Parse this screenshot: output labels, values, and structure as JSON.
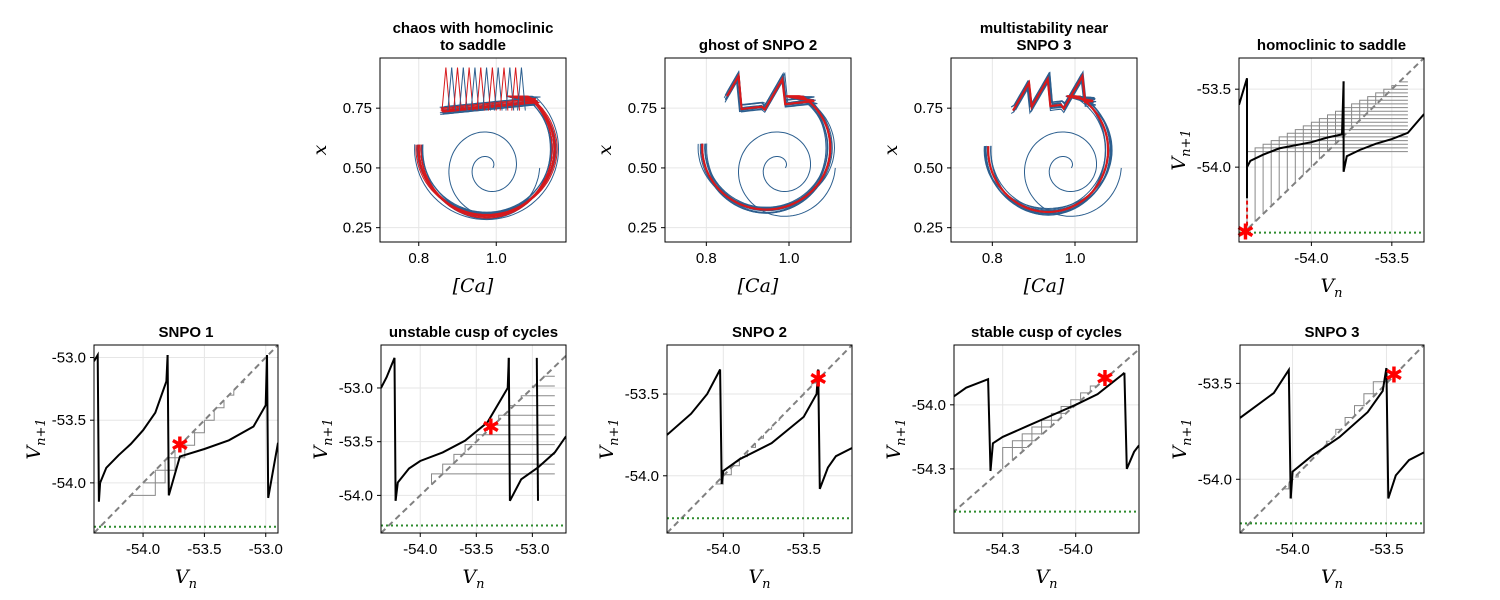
{
  "figure": {
    "title": ""
  },
  "chart_data": [
    {
      "type": "phase-portrait",
      "title": [
        "chaos with homoclinic",
        "to saddle"
      ],
      "xlabel": "[Ca]",
      "ylabel": "x",
      "xlim": [
        0.7,
        1.18
      ],
      "ylim": [
        0.19,
        0.96
      ],
      "xticks": [
        0.8,
        1.0
      ],
      "xtick_labels": [
        "0.8",
        "1.0"
      ],
      "yticks": [
        0.25,
        0.5,
        0.75
      ],
      "ytick_labels": [
        "0.25",
        "0.50",
        "0.75"
      ],
      "grid": true,
      "colors": {
        "transient": "#2c5f8f",
        "attractor": "#d7191c"
      },
      "attractor": "chaotic band",
      "x_range": [
        0.8,
        1.15
      ],
      "y_range": [
        0.27,
        0.93
      ],
      "x_low": 0.86,
      "x_high": 0.93,
      "peaks": 14,
      "transient": {
        "start": [
          1.0,
          0.5
        ]
      }
    },
    {
      "type": "phase-portrait",
      "title": [
        "ghost of SNPO 2"
      ],
      "xlabel": "[Ca]",
      "ylabel": "x",
      "xlim": [
        0.7,
        1.15
      ],
      "ylim": [
        0.19,
        0.96
      ],
      "xticks": [
        0.8,
        1.0
      ],
      "xtick_labels": [
        "0.8",
        "1.0"
      ],
      "yticks": [
        0.25,
        0.5,
        0.75
      ],
      "ytick_labels": [
        "0.25",
        "0.50",
        "0.75"
      ],
      "grid": true,
      "colors": {
        "transient": "#2c5f8f",
        "attractor": "#d7191c"
      },
      "attractor": "period orbit (2 spikes)",
      "x_range": [
        0.79,
        1.1
      ],
      "y_range": [
        0.3,
        0.91
      ],
      "spikes_x": [
        0.83,
        0.94
      ],
      "transient": {
        "start": [
          1.0,
          0.5
        ]
      }
    },
    {
      "type": "phase-portrait",
      "title": [
        "multistability near",
        "SNPO 3"
      ],
      "xlabel": "[Ca]",
      "ylabel": "x",
      "xlim": [
        0.7,
        1.15
      ],
      "ylim": [
        0.19,
        0.96
      ],
      "xticks": [
        0.8,
        1.0
      ],
      "xtick_labels": [
        "0.8",
        "1.0"
      ],
      "yticks": [
        0.25,
        0.5,
        0.75
      ],
      "ytick_labels": [
        "0.25",
        "0.50",
        "0.75"
      ],
      "grid": true,
      "colors": {
        "transient": "#2c5f8f",
        "attractor": "#d7191c"
      },
      "attractor": "period orbit (3 spikes)",
      "x_range": [
        0.79,
        1.08
      ],
      "y_range": [
        0.29,
        0.9
      ],
      "spikes_x": [
        0.85,
        0.89,
        0.97
      ],
      "transient": {
        "start": [
          1.0,
          0.5
        ]
      }
    },
    {
      "type": "return-map",
      "title": [
        "homoclinic to saddle"
      ],
      "xlabel": "V",
      "xlabel_sub": "n",
      "ylabel": "V",
      "ylabel_sub": "n+1",
      "xlim": [
        -54.45,
        -53.3
      ],
      "ylim": [
        -54.48,
        -53.3
      ],
      "xticks": [
        -54.0,
        -53.5
      ],
      "xtick_labels": [
        "-54.0",
        "-53.5"
      ],
      "yticks": [
        -54.0,
        -53.5
      ],
      "ytick_labels": [
        "-54.0",
        "-53.5"
      ],
      "grid": true,
      "map_branches": [
        {
          "x": [
            -54.45,
            -54.4,
            -54.4
          ],
          "y": [
            -53.6,
            -53.43,
            -54.2
          ]
        },
        {
          "x": [
            -54.4,
            -54.38,
            -54.3,
            -54.2,
            -54.0,
            -53.9,
            -53.81,
            -53.8
          ],
          "y": [
            -54.0,
            -53.96,
            -53.92,
            -53.88,
            -53.84,
            -53.81,
            -53.79,
            -53.45
          ]
        },
        {
          "x": [
            -53.8,
            -53.8,
            -53.78,
            -53.7,
            -53.6,
            -53.5,
            -53.4,
            -53.3
          ],
          "y": [
            -53.45,
            -54.03,
            -53.93,
            -53.89,
            -53.85,
            -53.82,
            -53.78,
            -53.66
          ]
        }
      ],
      "cobweb": {
        "type": "chaotic",
        "x_range": [
          -54.4,
          -53.4
        ],
        "y_range": [
          -53.9,
          -53.43
        ],
        "step": 0.05
      },
      "threshold_y": -54.42,
      "markers": [
        {
          "x": -54.41,
          "y": -54.42
        }
      ],
      "dashed_connector": {
        "x": -54.4,
        "y": [
          -54.42,
          -54.2
        ]
      }
    },
    {
      "type": "return-map",
      "title": [
        "SNPO 1"
      ],
      "xlabel": "V",
      "xlabel_sub": "n",
      "ylabel": "V",
      "ylabel_sub": "n+1",
      "xlim": [
        -54.4,
        -52.9
      ],
      "ylim": [
        -54.4,
        -52.9
      ],
      "xticks": [
        -54.0,
        -53.5,
        -53.0
      ],
      "xtick_labels": [
        "-54.0",
        "-53.5",
        "-53.0"
      ],
      "yticks": [
        -54.0,
        -53.5,
        -53.0
      ],
      "ytick_labels": [
        "-54.0",
        "-53.5",
        "-53.0"
      ],
      "grid": true,
      "map_branches": [
        {
          "x": [
            -54.4,
            -54.37,
            -54.36,
            -54.35
          ],
          "y": [
            -53.03,
            -52.98,
            -54.15,
            -54.0
          ]
        },
        {
          "x": [
            -54.35,
            -54.3,
            -54.2,
            -54.1,
            -54.0,
            -53.9,
            -53.81,
            -53.8
          ],
          "y": [
            -54.0,
            -53.88,
            -53.78,
            -53.69,
            -53.58,
            -53.44,
            -53.19,
            -52.98
          ]
        },
        {
          "x": [
            -53.8,
            -53.79,
            -53.7,
            -53.5,
            -53.3,
            -53.1,
            -53.0,
            -52.99
          ],
          "y": [
            -52.98,
            -54.1,
            -53.79,
            -53.73,
            -53.66,
            -53.55,
            -53.38,
            -52.98
          ]
        },
        {
          "x": [
            -52.99,
            -52.98,
            -52.9
          ],
          "y": [
            -52.98,
            -54.12,
            -53.68
          ]
        }
      ],
      "cobweb": {
        "type": "staircase",
        "x_range": [
          -53.9,
          -53.0
        ],
        "y_range": [
          -54.1,
          -53.0
        ],
        "step": 0.08
      },
      "threshold_y": -54.35,
      "markers": [
        {
          "x": -53.7,
          "y": -53.7
        }
      ]
    },
    {
      "type": "return-map",
      "title": [
        "unstable cusp of cycles"
      ],
      "xlabel": "V",
      "xlabel_sub": "n",
      "ylabel": "V",
      "ylabel_sub": "n+1",
      "xlim": [
        -54.35,
        -52.7
      ],
      "ylim": [
        -54.35,
        -52.6
      ],
      "xticks": [
        -54.0,
        -53.5,
        -53.0
      ],
      "xtick_labels": [
        "-54.0",
        "-53.5",
        "-53.0"
      ],
      "yticks": [
        -54.0,
        -53.5,
        -53.0
      ],
      "ytick_labels": [
        "-54.0",
        "-53.5",
        "-53.0"
      ],
      "grid": true,
      "map_branches": [
        {
          "x": [
            -54.35,
            -54.3,
            -54.23,
            -54.22
          ],
          "y": [
            -53.0,
            -52.9,
            -52.72,
            -54.05
          ]
        },
        {
          "x": [
            -54.22,
            -54.2,
            -54.1,
            -54.0,
            -53.8,
            -53.6,
            -53.4,
            -53.22,
            -53.21
          ],
          "y": [
            -54.05,
            -53.88,
            -53.75,
            -53.68,
            -53.6,
            -53.49,
            -53.32,
            -53.0,
            -52.72
          ]
        },
        {
          "x": [
            -53.21,
            -53.2,
            -53.1,
            -52.95,
            -52.8,
            -52.7
          ],
          "y": [
            -52.72,
            -54.05,
            -53.85,
            -53.74,
            -53.6,
            -53.45
          ]
        },
        {
          "x": [
            -52.96,
            -52.95
          ],
          "y": [
            -52.72,
            -54.05
          ]
        }
      ],
      "cobweb": {
        "type": "grid",
        "x_range": [
          -53.9,
          -52.8
        ],
        "y_range": [
          -53.8,
          -52.8
        ],
        "step": 0.1
      },
      "threshold_y": -54.28,
      "markers": [
        {
          "x": -53.37,
          "y": -53.37
        }
      ]
    },
    {
      "type": "return-map",
      "title": [
        "SNPO 2"
      ],
      "xlabel": "V",
      "xlabel_sub": "n",
      "ylabel": "V",
      "ylabel_sub": "n+1",
      "xlim": [
        -54.35,
        -53.2
      ],
      "ylim": [
        -54.35,
        -53.2
      ],
      "xticks": [
        -54.0,
        -53.5
      ],
      "xtick_labels": [
        "-54.0",
        "-53.5"
      ],
      "yticks": [
        -54.0,
        -53.5
      ],
      "ytick_labels": [
        "-54.0",
        "-53.5"
      ],
      "grid": true,
      "map_branches": [
        {
          "x": [
            -54.35,
            -54.2,
            -54.1,
            -54.02,
            -54.01
          ],
          "y": [
            -53.75,
            -53.62,
            -53.5,
            -53.35,
            -54.05
          ]
        },
        {
          "x": [
            -54.01,
            -54.0,
            -53.9,
            -53.7,
            -53.5,
            -53.42,
            -53.41
          ],
          "y": [
            -54.05,
            -53.97,
            -53.9,
            -53.8,
            -53.64,
            -53.5,
            -53.35
          ]
        },
        {
          "x": [
            -53.41,
            -53.4,
            -53.35,
            -53.3,
            -53.2
          ],
          "y": [
            -53.35,
            -54.08,
            -53.95,
            -53.88,
            -53.83
          ]
        }
      ],
      "cobweb": {
        "type": "staircase",
        "x_range": [
          -54.0,
          -53.42
        ],
        "y_range": [
          -54.05,
          -53.38
        ],
        "step": 0.05
      },
      "threshold_y": -54.26,
      "markers": [
        {
          "x": -53.41,
          "y": -53.41
        }
      ]
    },
    {
      "type": "return-map",
      "title": [
        "stable cusp of cycles"
      ],
      "xlabel": "V",
      "xlabel_sub": "n",
      "ylabel": "V",
      "ylabel_sub": "n+1",
      "xlim": [
        -54.5,
        -53.74
      ],
      "ylim": [
        -54.6,
        -53.72
      ],
      "xticks": [
        -54.3,
        -54.0
      ],
      "xtick_labels": [
        "-54.3",
        "-54.0"
      ],
      "yticks": [
        -54.3,
        -54.0
      ],
      "ytick_labels": [
        "-54.3",
        "-54.0"
      ],
      "grid": true,
      "map_branches": [
        {
          "x": [
            -54.5,
            -54.45,
            -54.36,
            -54.35
          ],
          "y": [
            -53.96,
            -53.92,
            -53.88,
            -54.31
          ]
        },
        {
          "x": [
            -54.35,
            -54.34,
            -54.3,
            -54.2,
            -54.1,
            -54.0,
            -53.91,
            -53.81,
            -53.8
          ],
          "y": [
            -54.31,
            -54.18,
            -54.15,
            -54.1,
            -54.05,
            -54.0,
            -53.95,
            -53.86,
            -53.85
          ]
        },
        {
          "x": [
            -53.8,
            -53.79,
            -53.76,
            -53.74
          ],
          "y": [
            -53.85,
            -54.3,
            -54.22,
            -54.19
          ]
        }
      ],
      "cobweb": {
        "type": "staircase",
        "x_range": [
          -54.3,
          -53.88
        ],
        "y_range": [
          -54.2,
          -53.88
        ],
        "step": 0.04
      },
      "threshold_y": -54.5,
      "markers": [
        {
          "x": -53.88,
          "y": -53.88
        }
      ]
    },
    {
      "type": "return-map",
      "title": [
        "SNPO 3"
      ],
      "xlabel": "V",
      "xlabel_sub": "n",
      "ylabel": "V",
      "ylabel_sub": "n+1",
      "xlim": [
        -54.28,
        -53.3
      ],
      "ylim": [
        -54.28,
        -53.3
      ],
      "xticks": [
        -54.0,
        -53.5
      ],
      "xtick_labels": [
        "-54.0",
        "-53.5"
      ],
      "yticks": [
        -54.0,
        -53.5
      ],
      "ytick_labels": [
        "-54.0",
        "-53.5"
      ],
      "grid": true,
      "map_branches": [
        {
          "x": [
            -54.28,
            -54.1,
            -54.02,
            -54.01
          ],
          "y": [
            -53.68,
            -53.55,
            -53.43,
            -54.1
          ]
        },
        {
          "x": [
            -54.01,
            -54.0,
            -53.9,
            -53.75,
            -53.6,
            -53.52,
            -53.5
          ],
          "y": [
            -54.1,
            -53.96,
            -53.88,
            -53.78,
            -53.65,
            -53.54,
            -53.42
          ]
        },
        {
          "x": [
            -53.5,
            -53.49,
            -53.45,
            -53.38,
            -53.3
          ],
          "y": [
            -53.42,
            -54.1,
            -53.98,
            -53.9,
            -53.86
          ]
        }
      ],
      "cobweb": {
        "type": "staircase",
        "x_range": [
          -54.02,
          -53.5
        ],
        "y_range": [
          -54.05,
          -53.43
        ],
        "step": 0.05
      },
      "threshold_y": -54.23,
      "markers": [
        {
          "x": -53.46,
          "y": -53.46
        }
      ]
    }
  ]
}
